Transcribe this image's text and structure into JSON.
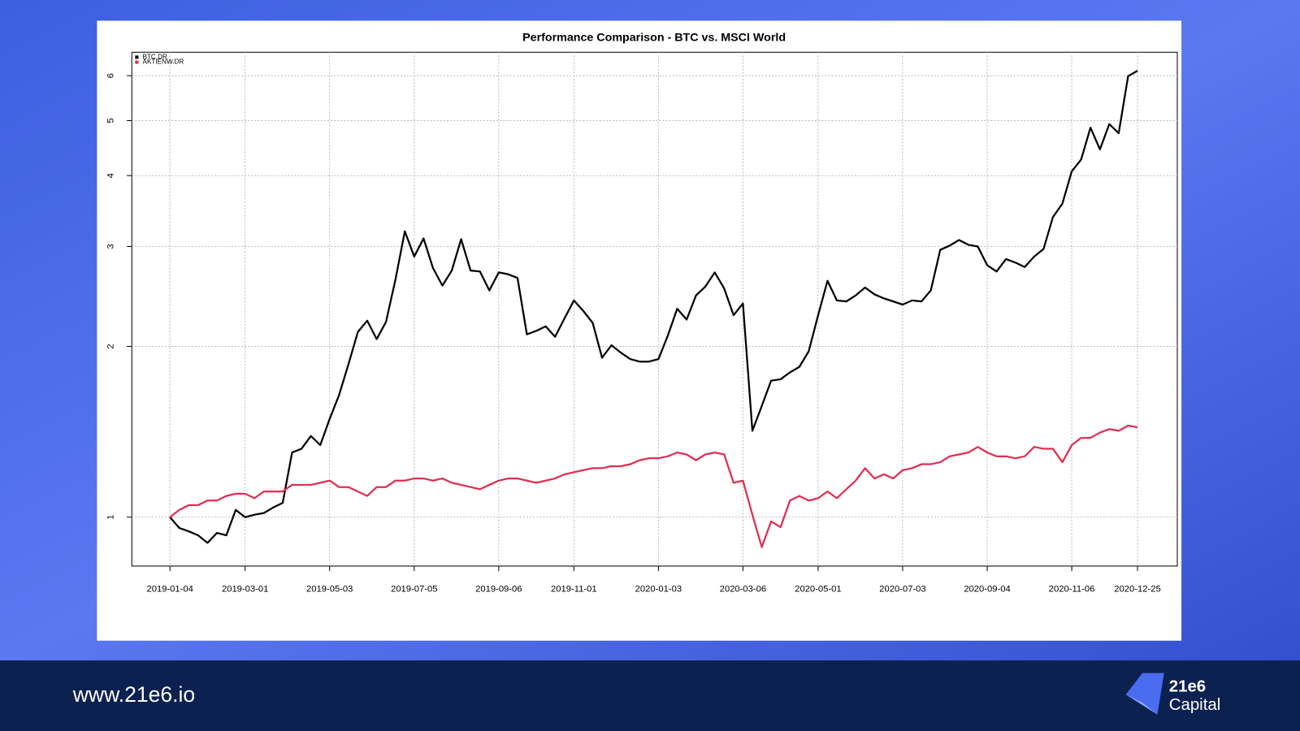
{
  "chart_data": {
    "type": "line",
    "title": "Performance Comparison - BTC vs. MSCI World",
    "log_y": true,
    "grid": true,
    "legend": "top-left",
    "x": [
      "2019-01-04",
      "2019-01-11",
      "2019-01-18",
      "2019-01-25",
      "2019-02-01",
      "2019-02-08",
      "2019-02-15",
      "2019-02-22",
      "2019-03-01",
      "2019-03-08",
      "2019-03-15",
      "2019-03-22",
      "2019-03-29",
      "2019-04-05",
      "2019-04-12",
      "2019-04-19",
      "2019-04-26",
      "2019-05-03",
      "2019-05-10",
      "2019-05-17",
      "2019-05-24",
      "2019-05-31",
      "2019-06-07",
      "2019-06-14",
      "2019-06-21",
      "2019-06-28",
      "2019-07-05",
      "2019-07-12",
      "2019-07-19",
      "2019-07-26",
      "2019-08-02",
      "2019-08-09",
      "2019-08-16",
      "2019-08-23",
      "2019-08-30",
      "2019-09-06",
      "2019-09-13",
      "2019-09-20",
      "2019-09-27",
      "2019-10-04",
      "2019-10-11",
      "2019-10-18",
      "2019-10-25",
      "2019-11-01",
      "2019-11-08",
      "2019-11-15",
      "2019-11-22",
      "2019-11-29",
      "2019-12-06",
      "2019-12-13",
      "2019-12-20",
      "2019-12-27",
      "2020-01-03",
      "2020-01-10",
      "2020-01-17",
      "2020-01-24",
      "2020-01-31",
      "2020-02-07",
      "2020-02-14",
      "2020-02-21",
      "2020-02-28",
      "2020-03-06",
      "2020-03-13",
      "2020-03-20",
      "2020-03-27",
      "2020-04-03",
      "2020-04-10",
      "2020-04-17",
      "2020-04-24",
      "2020-05-01",
      "2020-05-08",
      "2020-05-15",
      "2020-05-22",
      "2020-05-29",
      "2020-06-05",
      "2020-06-12",
      "2020-06-19",
      "2020-06-26",
      "2020-07-03",
      "2020-07-10",
      "2020-07-17",
      "2020-07-24",
      "2020-07-31",
      "2020-08-07",
      "2020-08-14",
      "2020-08-21",
      "2020-08-28",
      "2020-09-04",
      "2020-09-11",
      "2020-09-18",
      "2020-09-25",
      "2020-10-02",
      "2020-10-09",
      "2020-10-16",
      "2020-10-23",
      "2020-10-30",
      "2020-11-06",
      "2020-11-13",
      "2020-11-20",
      "2020-11-27",
      "2020-12-04",
      "2020-12-11",
      "2020-12-18",
      "2020-12-25"
    ],
    "series": [
      {
        "name": "BTC.DR",
        "color": "#000000",
        "values": [
          1.0,
          0.957,
          0.944,
          0.929,
          0.901,
          0.938,
          0.929,
          1.03,
          1.0,
          1.01,
          1.017,
          1.04,
          1.06,
          1.3,
          1.32,
          1.39,
          1.34,
          1.49,
          1.64,
          1.86,
          2.12,
          2.22,
          2.06,
          2.21,
          2.62,
          3.19,
          2.88,
          3.1,
          2.75,
          2.56,
          2.72,
          3.09,
          2.72,
          2.71,
          2.51,
          2.7,
          2.68,
          2.64,
          2.1,
          2.13,
          2.17,
          2.08,
          2.24,
          2.41,
          2.31,
          2.2,
          1.91,
          2.01,
          1.95,
          1.9,
          1.88,
          1.88,
          1.9,
          2.09,
          2.33,
          2.23,
          2.46,
          2.55,
          2.7,
          2.53,
          2.27,
          2.38,
          1.42,
          1.57,
          1.74,
          1.75,
          1.8,
          1.84,
          1.96,
          2.27,
          2.61,
          2.41,
          2.4,
          2.46,
          2.54,
          2.47,
          2.43,
          2.4,
          2.37,
          2.41,
          2.4,
          2.51,
          2.96,
          3.01,
          3.08,
          3.02,
          3.0,
          2.78,
          2.71,
          2.85,
          2.81,
          2.76,
          2.88,
          2.97,
          3.38,
          3.57,
          4.07,
          4.27,
          4.86,
          4.45,
          4.93,
          4.75,
          5.99,
          6.12
        ]
      },
      {
        "name": "AKTIENW.DR",
        "color": "#df2e52",
        "values": [
          1.0,
          1.03,
          1.05,
          1.05,
          1.07,
          1.07,
          1.09,
          1.1,
          1.1,
          1.08,
          1.11,
          1.11,
          1.11,
          1.14,
          1.14,
          1.14,
          1.15,
          1.16,
          1.13,
          1.13,
          1.11,
          1.09,
          1.13,
          1.13,
          1.16,
          1.16,
          1.17,
          1.17,
          1.16,
          1.17,
          1.15,
          1.14,
          1.13,
          1.12,
          1.14,
          1.16,
          1.17,
          1.17,
          1.16,
          1.15,
          1.16,
          1.17,
          1.19,
          1.2,
          1.21,
          1.22,
          1.22,
          1.23,
          1.23,
          1.24,
          1.26,
          1.27,
          1.27,
          1.28,
          1.3,
          1.29,
          1.26,
          1.29,
          1.3,
          1.29,
          1.15,
          1.16,
          1.01,
          0.886,
          0.983,
          0.96,
          1.07,
          1.09,
          1.07,
          1.08,
          1.11,
          1.08,
          1.12,
          1.16,
          1.22,
          1.17,
          1.19,
          1.17,
          1.21,
          1.22,
          1.24,
          1.24,
          1.25,
          1.28,
          1.29,
          1.3,
          1.33,
          1.3,
          1.28,
          1.28,
          1.27,
          1.28,
          1.33,
          1.32,
          1.32,
          1.25,
          1.34,
          1.38,
          1.38,
          1.41,
          1.43,
          1.42,
          1.45,
          1.44
        ]
      }
    ],
    "ylim": [
      0.82,
      6.6
    ],
    "yticks": [
      1,
      2,
      3,
      4,
      5,
      6
    ],
    "xticks": [
      "2019-01-04",
      "2019-03-01",
      "2019-05-03",
      "2019-07-05",
      "2019-09-06",
      "2019-11-01",
      "2020-01-03",
      "2020-03-06",
      "2020-05-01",
      "2020-07-03",
      "2020-09-04",
      "2020-11-06",
      "2020-12-25"
    ]
  },
  "footer": {
    "url": "www.21e6.io",
    "brand": "21e6",
    "brand_sub": "Capital"
  }
}
